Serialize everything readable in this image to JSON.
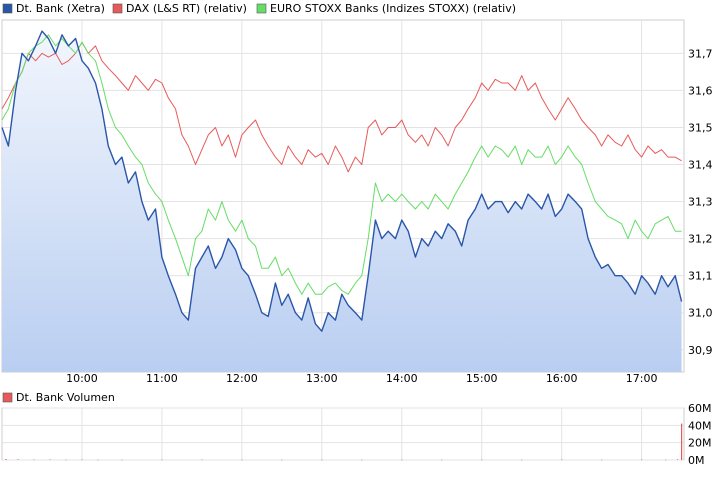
{
  "chart_data": [
    {
      "type": "line",
      "legend": [
        {
          "name": "Dt. Bank (Xetra)",
          "color": "#2a56a8"
        },
        {
          "name": "DAX (L&S RT) (relativ)",
          "color": "#e85a5a"
        },
        {
          "name": "EURO STOXX Banks (Indizes STOXX) (relativ)",
          "color": "#66dd66"
        }
      ],
      "x_ticks": [
        "10:00",
        "11:00",
        "12:00",
        "13:00",
        "14:00",
        "15:00",
        "16:00",
        "17:00"
      ],
      "y_ticks": [
        "31,7",
        "31,6",
        "31,5",
        "31,4",
        "31,3",
        "31,2",
        "31,1",
        "31,0",
        "30,9"
      ],
      "ylim": [
        30.84,
        31.79
      ],
      "x_range_minutes": [
        9.0,
        17.53
      ],
      "grid": true,
      "legend_placement": "top",
      "series": [
        {
          "name": "Dt. Bank (Xetra)",
          "color": "#2a56a8",
          "area_fill": true,
          "x": [
            9.0,
            9.08,
            9.17,
            9.25,
            9.33,
            9.42,
            9.5,
            9.58,
            9.67,
            9.75,
            9.83,
            9.92,
            10.0,
            10.08,
            10.17,
            10.25,
            10.33,
            10.42,
            10.5,
            10.58,
            10.67,
            10.75,
            10.83,
            10.92,
            11.0,
            11.08,
            11.17,
            11.25,
            11.33,
            11.42,
            11.5,
            11.58,
            11.67,
            11.75,
            11.83,
            11.92,
            12.0,
            12.08,
            12.17,
            12.25,
            12.33,
            12.42,
            12.5,
            12.58,
            12.67,
            12.75,
            12.83,
            12.92,
            13.0,
            13.08,
            13.17,
            13.25,
            13.33,
            13.42,
            13.5,
            13.58,
            13.67,
            13.75,
            13.83,
            13.92,
            14.0,
            14.08,
            14.17,
            14.25,
            14.33,
            14.42,
            14.5,
            14.58,
            14.67,
            14.75,
            14.83,
            14.92,
            15.0,
            15.08,
            15.17,
            15.25,
            15.33,
            15.42,
            15.5,
            15.58,
            15.67,
            15.75,
            15.83,
            15.92,
            16.0,
            16.08,
            16.17,
            16.25,
            16.33,
            16.42,
            16.5,
            16.58,
            16.67,
            16.75,
            16.83,
            16.92,
            17.0,
            17.08,
            17.17,
            17.25,
            17.33,
            17.42,
            17.5
          ],
          "values": [
            31.5,
            31.45,
            31.6,
            31.7,
            31.68,
            31.72,
            31.76,
            31.74,
            31.7,
            31.75,
            31.72,
            31.74,
            31.68,
            31.66,
            31.62,
            31.55,
            31.45,
            31.4,
            31.42,
            31.35,
            31.38,
            31.3,
            31.25,
            31.28,
            31.15,
            31.1,
            31.05,
            31.0,
            30.98,
            31.12,
            31.15,
            31.18,
            31.12,
            31.15,
            31.2,
            31.17,
            31.12,
            31.1,
            31.05,
            31.0,
            30.99,
            31.08,
            31.02,
            31.05,
            31.0,
            30.98,
            31.04,
            30.97,
            30.95,
            31.0,
            30.98,
            31.05,
            31.02,
            31.0,
            30.98,
            31.1,
            31.25,
            31.2,
            31.22,
            31.2,
            31.25,
            31.22,
            31.15,
            31.2,
            31.18,
            31.22,
            31.2,
            31.24,
            31.22,
            31.18,
            31.25,
            31.28,
            31.32,
            31.28,
            31.3,
            31.3,
            31.27,
            31.3,
            31.28,
            31.32,
            31.3,
            31.28,
            31.32,
            31.26,
            31.28,
            31.32,
            31.3,
            31.28,
            31.2,
            31.15,
            31.12,
            31.13,
            31.1,
            31.1,
            31.08,
            31.05,
            31.1,
            31.08,
            31.05,
            31.1,
            31.07,
            31.1,
            31.03
          ]
        },
        {
          "name": "DAX (L&S RT) (relativ)",
          "color": "#e85a5a",
          "x": [
            9.0,
            9.08,
            9.17,
            9.25,
            9.33,
            9.42,
            9.5,
            9.58,
            9.67,
            9.75,
            9.83,
            9.92,
            10.0,
            10.08,
            10.17,
            10.25,
            10.33,
            10.42,
            10.5,
            10.58,
            10.67,
            10.75,
            10.83,
            10.92,
            11.0,
            11.08,
            11.17,
            11.25,
            11.33,
            11.42,
            11.5,
            11.58,
            11.67,
            11.75,
            11.83,
            11.92,
            12.0,
            12.08,
            12.17,
            12.25,
            12.33,
            12.42,
            12.5,
            12.58,
            12.67,
            12.75,
            12.83,
            12.92,
            13.0,
            13.08,
            13.17,
            13.25,
            13.33,
            13.42,
            13.5,
            13.58,
            13.67,
            13.75,
            13.83,
            13.92,
            14.0,
            14.08,
            14.17,
            14.25,
            14.33,
            14.42,
            14.5,
            14.58,
            14.67,
            14.75,
            14.83,
            14.92,
            15.0,
            15.08,
            15.17,
            15.25,
            15.33,
            15.42,
            15.5,
            15.58,
            15.67,
            15.75,
            15.83,
            15.92,
            16.0,
            16.08,
            16.17,
            16.25,
            16.33,
            16.42,
            16.5,
            16.58,
            16.67,
            16.75,
            16.83,
            16.92,
            17.0,
            17.08,
            17.17,
            17.25,
            17.33,
            17.42,
            17.5
          ],
          "values": [
            31.55,
            31.58,
            31.62,
            31.65,
            31.7,
            31.68,
            31.7,
            31.69,
            31.7,
            31.67,
            31.68,
            31.7,
            31.73,
            31.7,
            31.72,
            31.68,
            31.66,
            31.64,
            31.62,
            31.6,
            31.64,
            31.62,
            31.6,
            31.63,
            31.62,
            31.58,
            31.55,
            31.48,
            31.45,
            31.4,
            31.44,
            31.48,
            31.5,
            31.45,
            31.48,
            31.42,
            31.48,
            31.5,
            31.52,
            31.48,
            31.45,
            31.42,
            31.4,
            31.45,
            31.42,
            31.4,
            31.44,
            31.42,
            31.43,
            31.4,
            31.45,
            31.42,
            31.38,
            31.42,
            31.4,
            31.5,
            31.52,
            31.48,
            31.5,
            31.5,
            31.52,
            31.48,
            31.46,
            31.48,
            31.45,
            31.5,
            31.48,
            31.45,
            31.5,
            31.52,
            31.55,
            31.58,
            31.62,
            31.6,
            31.63,
            31.62,
            31.62,
            31.6,
            31.64,
            31.6,
            31.62,
            31.58,
            31.55,
            31.52,
            31.55,
            31.58,
            31.55,
            31.52,
            31.5,
            31.48,
            31.45,
            31.48,
            31.46,
            31.45,
            31.48,
            31.44,
            31.42,
            31.45,
            31.43,
            31.44,
            31.42,
            31.42,
            31.41
          ]
        },
        {
          "name": "EURO STOXX Banks (Indizes STOXX) (relativ)",
          "color": "#66dd66",
          "x": [
            9.0,
            9.08,
            9.17,
            9.25,
            9.33,
            9.42,
            9.5,
            9.58,
            9.67,
            9.75,
            9.83,
            9.92,
            10.0,
            10.08,
            10.17,
            10.25,
            10.33,
            10.42,
            10.5,
            10.58,
            10.67,
            10.75,
            10.83,
            10.92,
            11.0,
            11.08,
            11.17,
            11.25,
            11.33,
            11.42,
            11.5,
            11.58,
            11.67,
            11.75,
            11.83,
            11.92,
            12.0,
            12.08,
            12.17,
            12.25,
            12.33,
            12.42,
            12.5,
            12.58,
            12.67,
            12.75,
            12.83,
            12.92,
            13.0,
            13.08,
            13.17,
            13.25,
            13.33,
            13.42,
            13.5,
            13.58,
            13.67,
            13.75,
            13.83,
            13.92,
            14.0,
            14.08,
            14.17,
            14.25,
            14.33,
            14.42,
            14.5,
            14.58,
            14.67,
            14.75,
            14.83,
            14.92,
            15.0,
            15.08,
            15.17,
            15.25,
            15.33,
            15.42,
            15.5,
            15.58,
            15.67,
            15.75,
            15.83,
            15.92,
            16.0,
            16.08,
            16.17,
            16.25,
            16.33,
            16.42,
            16.5,
            16.58,
            16.67,
            16.75,
            16.83,
            16.92,
            17.0,
            17.08,
            17.17,
            17.25,
            17.33,
            17.42,
            17.5
          ],
          "values": [
            31.52,
            31.55,
            31.62,
            31.65,
            31.7,
            31.72,
            31.73,
            31.75,
            31.72,
            31.74,
            31.72,
            31.7,
            31.73,
            31.7,
            31.68,
            31.62,
            31.55,
            31.5,
            31.48,
            31.45,
            31.42,
            31.4,
            31.35,
            31.32,
            31.3,
            31.25,
            31.2,
            31.15,
            31.1,
            31.2,
            31.22,
            31.28,
            31.25,
            31.3,
            31.25,
            31.22,
            31.25,
            31.2,
            31.18,
            31.12,
            31.12,
            31.15,
            31.1,
            31.12,
            31.08,
            31.05,
            31.08,
            31.05,
            31.05,
            31.07,
            31.08,
            31.06,
            31.05,
            31.08,
            31.1,
            31.2,
            31.35,
            31.3,
            31.32,
            31.3,
            31.32,
            31.3,
            31.28,
            31.3,
            31.28,
            31.32,
            31.3,
            31.28,
            31.32,
            31.35,
            31.38,
            31.42,
            31.45,
            31.42,
            31.45,
            31.44,
            31.42,
            31.45,
            31.4,
            31.44,
            31.42,
            31.42,
            31.45,
            31.4,
            31.42,
            31.45,
            31.42,
            31.4,
            31.35,
            31.3,
            31.28,
            31.26,
            31.25,
            31.24,
            31.2,
            31.25,
            31.22,
            31.2,
            31.24,
            31.25,
            31.26,
            31.22,
            31.22
          ]
        }
      ]
    },
    {
      "type": "bar",
      "legend": [
        {
          "name": "Dt. Bank Volumen",
          "color": "#e85a5a"
        }
      ],
      "y_ticks": [
        "60M",
        "40M",
        "20M",
        "0M"
      ],
      "ylim": [
        0,
        60
      ],
      "grid": true,
      "series": [
        {
          "name": "Dt. Bank Volumen",
          "color": "#e85a5a",
          "x": [
            9.05,
            9.2,
            9.4,
            9.6,
            9.8,
            10.0,
            10.2,
            10.5,
            11.0,
            11.5,
            12.0,
            12.5,
            13.0,
            13.5,
            14.0,
            14.5,
            15.0,
            15.5,
            16.0,
            16.5,
            17.0,
            17.3,
            17.45,
            17.5
          ],
          "values": [
            1.2,
            0.8,
            0.6,
            0.7,
            0.5,
            0.6,
            0.4,
            0.4,
            0.5,
            0.6,
            0.4,
            0.4,
            0.3,
            0.4,
            0.4,
            0.5,
            0.5,
            0.4,
            0.6,
            0.5,
            0.6,
            0.5,
            0.8,
            42.0
          ]
        }
      ]
    }
  ]
}
